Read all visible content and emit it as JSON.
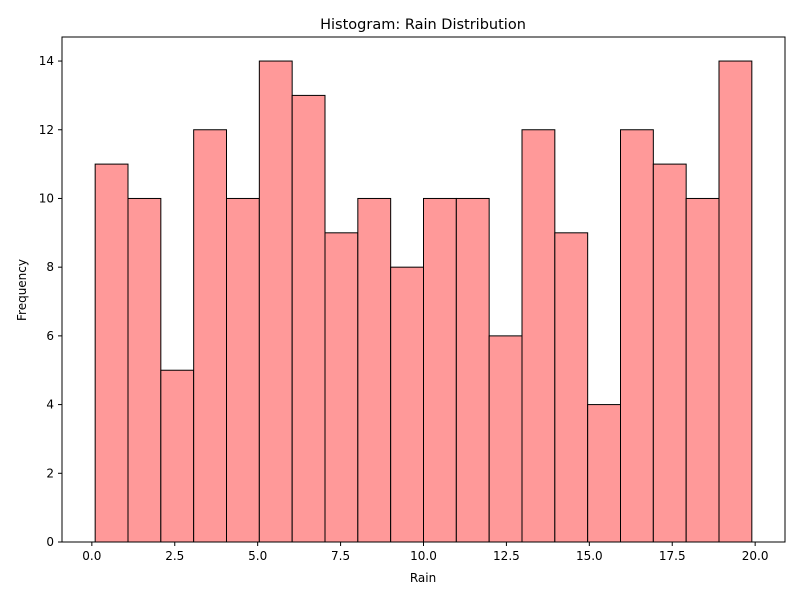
{
  "chart_data": {
    "type": "bar",
    "title": "Histogram: Rain Distribution",
    "xlabel": "Rain",
    "ylabel": "Frequency",
    "bin_start": 0.1,
    "bin_width": 0.99,
    "values": [
      11,
      10,
      5,
      12,
      10,
      14,
      13,
      9,
      10,
      8,
      10,
      10,
      6,
      12,
      9,
      4,
      12,
      11,
      10,
      14
    ],
    "xlim": [
      -0.9,
      20.9
    ],
    "ylim": [
      0,
      14.7
    ],
    "xticks": [
      0.0,
      2.5,
      5.0,
      7.5,
      10.0,
      12.5,
      15.0,
      17.5,
      20.0
    ],
    "xtick_labels": [
      "0.0",
      "2.5",
      "5.0",
      "7.5",
      "10.0",
      "12.5",
      "15.0",
      "17.5",
      "20.0"
    ],
    "yticks": [
      0,
      2,
      4,
      6,
      8,
      10,
      12,
      14
    ],
    "ytick_labels": [
      "0",
      "2",
      "4",
      "6",
      "8",
      "10",
      "12",
      "14"
    ],
    "bar_color": "#ff9999",
    "edge_color": "#000000",
    "grid": false
  }
}
